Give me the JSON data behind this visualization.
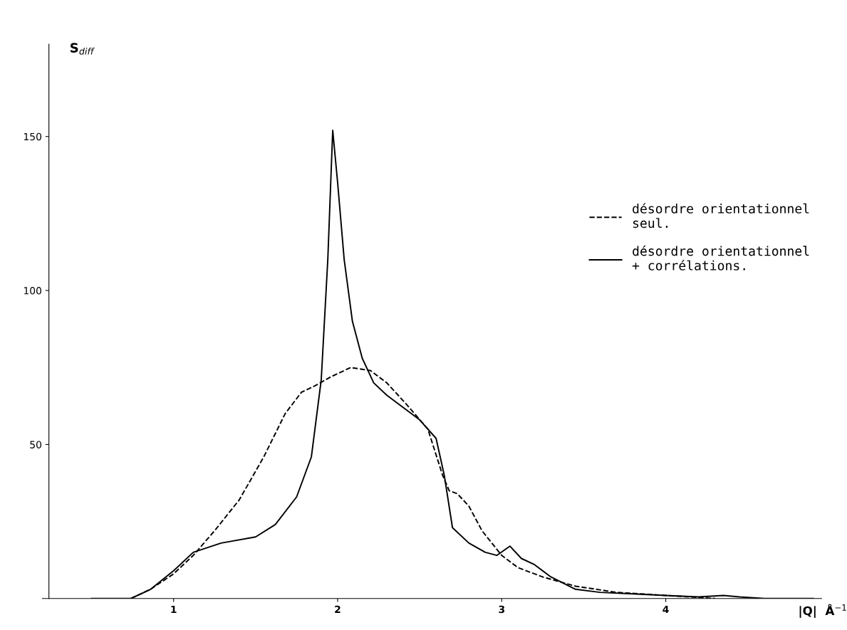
{
  "chart_data": {
    "type": "line",
    "ylabel": "S$_{diff}$",
    "xlabel": "|Q|  Å$^{−1}$",
    "xlim": [
      0.2,
      4.95
    ],
    "ylim": [
      0,
      180
    ],
    "xticks": [
      1,
      2,
      3,
      4
    ],
    "yticks": [
      50,
      100,
      150
    ],
    "grid": false,
    "legend": "right",
    "series": [
      {
        "name": "désordre orientationnel\nseul.",
        "color": "#000000",
        "line_style": "dashed",
        "x": [
          0.74,
          0.86,
          1.0,
          1.12,
          1.25,
          1.4,
          1.55,
          1.68,
          1.78,
          1.86,
          1.96,
          2.08,
          2.2,
          2.3,
          2.42,
          2.55,
          2.64,
          2.68,
          2.73,
          2.8,
          2.88,
          3.0,
          3.1,
          3.25,
          3.45,
          3.7,
          4.0,
          4.3
        ],
        "values": [
          0,
          3,
          8,
          14,
          22,
          32,
          46,
          60,
          67,
          69,
          72,
          75,
          74,
          70,
          63,
          55,
          40,
          35,
          34,
          30,
          22,
          14,
          10,
          7,
          4,
          2,
          1,
          0
        ]
      },
      {
        "name": "désordre orientationnel\n+ corrélations.",
        "color": "#000000",
        "line_style": "solid",
        "x": [
          0.5,
          0.74,
          0.86,
          1.0,
          1.12,
          1.29,
          1.5,
          1.62,
          1.75,
          1.84,
          1.9,
          1.94,
          1.97,
          2.0,
          2.04,
          2.09,
          2.15,
          2.22,
          2.3,
          2.4,
          2.5,
          2.6,
          2.65,
          2.7,
          2.8,
          2.9,
          2.97,
          3.05,
          3.12,
          3.2,
          3.3,
          3.45,
          3.6,
          3.8,
          4.0,
          4.2,
          4.35,
          4.45,
          4.6,
          4.9
        ],
        "values": [
          0,
          0,
          3,
          9,
          15,
          18,
          20,
          24,
          33,
          46,
          71,
          110,
          152,
          135,
          110,
          90,
          78,
          70,
          66,
          62,
          58,
          52,
          40,
          23,
          18,
          15,
          14,
          17,
          13,
          11,
          7,
          3,
          2,
          1.5,
          1,
          0.5,
          1,
          0.5,
          0,
          0
        ]
      }
    ]
  }
}
